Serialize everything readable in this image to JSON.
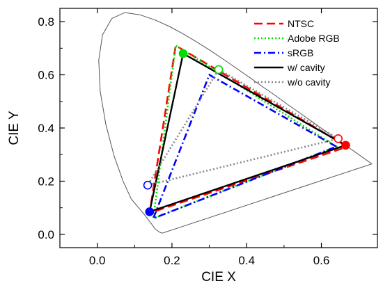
{
  "chart_data": {
    "type": "line",
    "title": "",
    "xlabel": "CIE X",
    "ylabel": "CIE Y",
    "xlim": [
      -0.1,
      0.75
    ],
    "ylim": [
      -0.05,
      0.85
    ],
    "x_ticks": [
      0.0,
      0.2,
      0.4,
      0.6
    ],
    "x_tick_labels": [
      "0.0",
      "0.2",
      "0.4",
      "0.6"
    ],
    "y_ticks": [
      0.0,
      0.2,
      0.4,
      0.6,
      0.8
    ],
    "y_tick_labels": [
      "0.0",
      "0.2",
      "0.4",
      "0.6",
      "0.8"
    ],
    "grid": false,
    "legend_position": "top-right",
    "spectral_locus": [
      [
        0.175,
        0.005
      ],
      [
        0.17,
        0.006
      ],
      [
        0.165,
        0.01
      ],
      [
        0.155,
        0.02
      ],
      [
        0.145,
        0.04
      ],
      [
        0.124,
        0.078
      ],
      [
        0.091,
        0.133
      ],
      [
        0.069,
        0.2
      ],
      [
        0.045,
        0.295
      ],
      [
        0.023,
        0.413
      ],
      [
        0.008,
        0.538
      ],
      [
        0.004,
        0.655
      ],
      [
        0.014,
        0.75
      ],
      [
        0.039,
        0.812
      ],
      [
        0.074,
        0.834
      ],
      [
        0.114,
        0.826
      ],
      [
        0.155,
        0.806
      ],
      [
        0.193,
        0.782
      ],
      [
        0.23,
        0.754
      ],
      [
        0.266,
        0.724
      ],
      [
        0.302,
        0.692
      ],
      [
        0.337,
        0.659
      ],
      [
        0.373,
        0.624
      ],
      [
        0.409,
        0.589
      ],
      [
        0.444,
        0.554
      ],
      [
        0.479,
        0.52
      ],
      [
        0.512,
        0.486
      ],
      [
        0.545,
        0.454
      ],
      [
        0.575,
        0.424
      ],
      [
        0.603,
        0.396
      ],
      [
        0.627,
        0.372
      ],
      [
        0.648,
        0.351
      ],
      [
        0.666,
        0.333
      ],
      [
        0.68,
        0.32
      ],
      [
        0.692,
        0.308
      ],
      [
        0.735,
        0.265
      ]
    ],
    "series": [
      {
        "name": "NTSC",
        "color": "#ff0000",
        "style": "dashed",
        "points": [
          [
            0.67,
            0.33
          ],
          [
            0.21,
            0.71
          ],
          [
            0.14,
            0.08
          ]
        ]
      },
      {
        "name": "Adobe RGB",
        "color": "#00dd00",
        "style": "dotted",
        "points": [
          [
            0.64,
            0.33
          ],
          [
            0.21,
            0.71
          ],
          [
            0.15,
            0.06
          ]
        ]
      },
      {
        "name": "sRGB",
        "color": "#0000ff",
        "style": "dash-dot",
        "points": [
          [
            0.64,
            0.33
          ],
          [
            0.3,
            0.6
          ],
          [
            0.15,
            0.06
          ]
        ]
      },
      {
        "name": "w/ cavity",
        "color": "#000000",
        "style": "solid",
        "points": [
          [
            0.665,
            0.335
          ],
          [
            0.23,
            0.68
          ],
          [
            0.14,
            0.085
          ]
        ],
        "markers": "filled"
      },
      {
        "name": "w/o cavity",
        "color": "#888888",
        "style": "dotted",
        "points": [
          [
            0.645,
            0.36
          ],
          [
            0.325,
            0.62
          ],
          [
            0.135,
            0.185
          ]
        ],
        "markers": "hollow"
      }
    ],
    "marker_colors": [
      "#ff0000",
      "#00dd00",
      "#0000ff"
    ]
  }
}
